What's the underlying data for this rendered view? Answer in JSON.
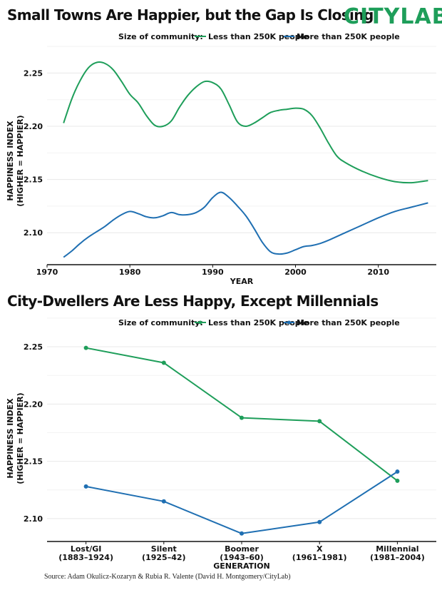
{
  "brand": {
    "logo_text": "CITYLAB"
  },
  "source": "Source: Adam Okulicz-Kozaryn & Rubia R. Valente (David H. Montgomery/CityLab)",
  "colors": {
    "green": "#1e9e5a",
    "blue": "#1f6fb2",
    "grid": "#e8e8e8",
    "axis": "#111111"
  },
  "legend": {
    "title": "Size of community:",
    "small": "Less than 250K people",
    "large": "More than 250K people"
  },
  "chart_data": [
    {
      "type": "line",
      "title": "Small Towns Are Happier, but the Gap Is Closing",
      "xlabel": "YEAR",
      "ylabel_line1": "HAPPINESS INDEX",
      "ylabel_line2": "(HIGHER = HAPPIER)",
      "xlim": [
        1970,
        2017
      ],
      "ylim": [
        2.07,
        2.265
      ],
      "xticks": [
        "1970",
        "1980",
        "1990",
        "2000",
        "2010"
      ],
      "yticks": [
        "2.10",
        "2.15",
        "2.20",
        "2.25"
      ],
      "series": [
        {
          "name": "Less than 250K people",
          "x": [
            1972,
            1973,
            1974,
            1975,
            1976,
            1977,
            1978,
            1979,
            1980,
            1981,
            1982,
            1983,
            1984,
            1985,
            1986,
            1987,
            1988,
            1989,
            1990,
            1991,
            1992,
            1993,
            1994,
            1995,
            1996,
            1997,
            1998,
            1999,
            2000,
            2001,
            2002,
            2003,
            2004,
            2005,
            2006,
            2008,
            2010,
            2012,
            2014,
            2016
          ],
          "y": [
            2.203,
            2.226,
            2.243,
            2.255,
            2.26,
            2.259,
            2.253,
            2.242,
            2.23,
            2.222,
            2.21,
            2.201,
            2.2,
            2.205,
            2.218,
            2.229,
            2.237,
            2.242,
            2.241,
            2.235,
            2.22,
            2.204,
            2.2,
            2.203,
            2.208,
            2.213,
            2.215,
            2.216,
            2.217,
            2.216,
            2.21,
            2.198,
            2.184,
            2.172,
            2.166,
            2.158,
            2.152,
            2.148,
            2.147,
            2.149
          ]
        },
        {
          "name": "More than 250K people",
          "x": [
            1972,
            1973,
            1974,
            1975,
            1976,
            1977,
            1978,
            1979,
            1980,
            1981,
            1982,
            1983,
            1984,
            1985,
            1986,
            1987,
            1988,
            1989,
            1990,
            1991,
            1992,
            1993,
            1994,
            1995,
            1996,
            1997,
            1998,
            1999,
            2000,
            2001,
            2002,
            2003,
            2004,
            2006,
            2008,
            2010,
            2012,
            2014,
            2016
          ],
          "y": [
            2.077,
            2.083,
            2.09,
            2.096,
            2.101,
            2.106,
            2.112,
            2.117,
            2.12,
            2.118,
            2.115,
            2.114,
            2.116,
            2.119,
            2.117,
            2.117,
            2.119,
            2.124,
            2.133,
            2.138,
            2.133,
            2.125,
            2.116,
            2.104,
            2.091,
            2.082,
            2.08,
            2.081,
            2.084,
            2.087,
            2.088,
            2.09,
            2.093,
            2.1,
            2.107,
            2.114,
            2.12,
            2.124,
            2.128
          ]
        }
      ]
    },
    {
      "type": "line",
      "title": "City-Dwellers Are Less Happy, Except Millennials",
      "xlabel": "GENERATION",
      "ylabel_line1": "HAPPINESS INDEX",
      "ylabel_line2": "(HIGHER = HAPPIER)",
      "ylim": [
        2.08,
        2.26
      ],
      "yticks": [
        "2.10",
        "2.15",
        "2.20",
        "2.25"
      ],
      "categories": [
        {
          "name": "Lost/GI",
          "years": "(1883–1924)"
        },
        {
          "name": "Silent",
          "years": "(1925–42)"
        },
        {
          "name": "Boomer",
          "years": "(1943–60)"
        },
        {
          "name": "X",
          "years": "(1961–1981)"
        },
        {
          "name": "Millennial",
          "years": "(1981–2004)"
        }
      ],
      "series": [
        {
          "name": "Less than 250K people",
          "values": [
            2.249,
            2.236,
            2.188,
            2.185,
            2.133
          ]
        },
        {
          "name": "More than 250K people",
          "values": [
            2.128,
            2.115,
            2.087,
            2.097,
            2.141
          ]
        }
      ]
    }
  ]
}
